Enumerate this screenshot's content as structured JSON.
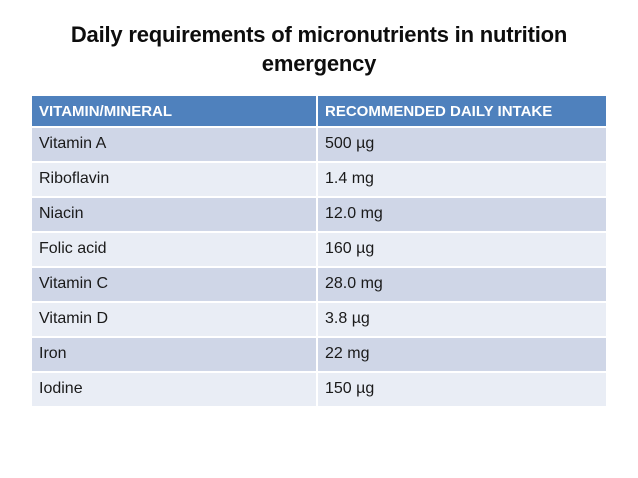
{
  "title": {
    "text": "Daily requirements of micronutrients in nutrition emergency",
    "line1": "Daily requirements of micronutrients in nutrition",
    "line2": "emergency"
  },
  "table": {
    "columns": [
      "VITAMIN/MINERAL",
      "RECOMMENDED DAILY INTAKE"
    ],
    "rows": [
      [
        "Vitamin A",
        "500 µg"
      ],
      [
        "Riboflavin",
        "1.4 mg"
      ],
      [
        "Niacin",
        "12.0 mg"
      ],
      [
        "Folic acid",
        "160 µg"
      ],
      [
        "Vitamin C",
        "28.0 mg"
      ],
      [
        "Vitamin D",
        "3.8 µg"
      ],
      [
        "Iron",
        "22 mg"
      ],
      [
        "Iodine",
        "150 µg"
      ]
    ]
  },
  "colors": {
    "header_bg": "#4F81BD",
    "header_text": "#FFFFFF",
    "row_odd_bg": "#CFD6E7",
    "row_even_bg": "#E9EDF5",
    "body_text": "#1A1A1A",
    "title_text": "#0D0D0D"
  }
}
